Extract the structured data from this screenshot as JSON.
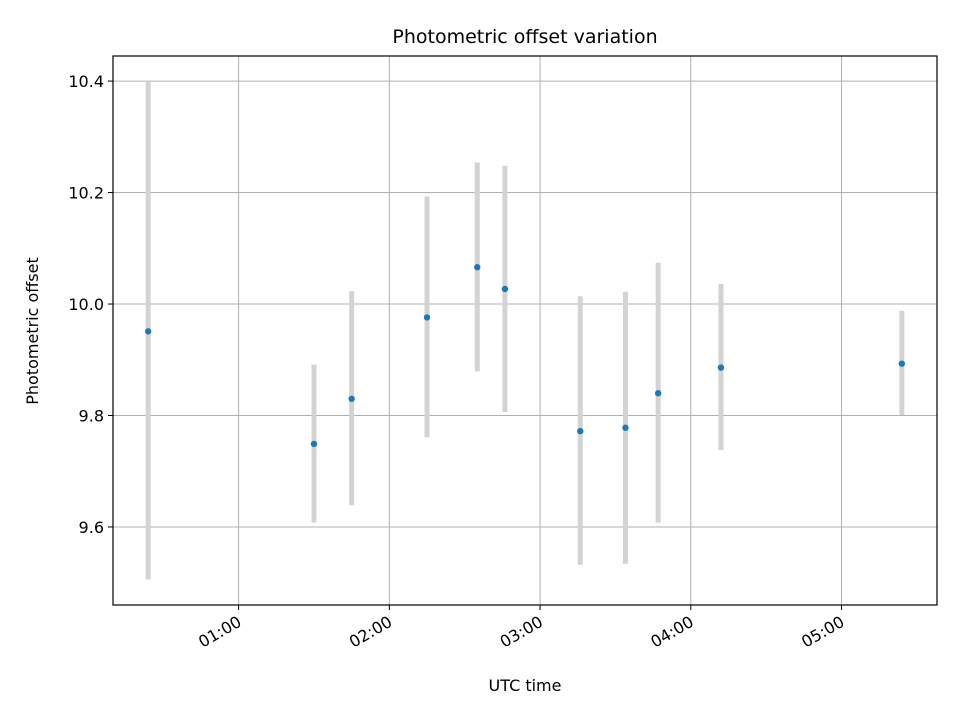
{
  "chart_data": {
    "type": "scatter",
    "title": "Photometric offset variation",
    "xlabel": "UTC time",
    "ylabel": "Photometric offset",
    "xlim": [
      "00:10",
      "05:38"
    ],
    "ylim": [
      9.46,
      10.445
    ],
    "x_ticks": [
      "01:00",
      "02:00",
      "03:00",
      "04:00",
      "05:00"
    ],
    "y_ticks": [
      "9.6",
      "9.8",
      "10.0",
      "10.2",
      "10.4"
    ],
    "grid": true,
    "marker_color": "#1f77b4",
    "errorbar_color": "#d3d3d3",
    "points": [
      {
        "x": "00:24",
        "y": 9.951,
        "ylow": 9.506,
        "yhigh": 10.4
      },
      {
        "x": "01:30",
        "y": 9.749,
        "ylow": 9.608,
        "yhigh": 9.891
      },
      {
        "x": "01:45",
        "y": 9.83,
        "ylow": 9.639,
        "yhigh": 10.023
      },
      {
        "x": "02:15",
        "y": 9.976,
        "ylow": 9.761,
        "yhigh": 10.193
      },
      {
        "x": "02:35",
        "y": 10.066,
        "ylow": 9.879,
        "yhigh": 10.254
      },
      {
        "x": "02:46",
        "y": 10.027,
        "ylow": 9.806,
        "yhigh": 10.248
      },
      {
        "x": "03:16",
        "y": 9.772,
        "ylow": 9.532,
        "yhigh": 10.014
      },
      {
        "x": "03:34",
        "y": 9.778,
        "ylow": 9.534,
        "yhigh": 10.022
      },
      {
        "x": "03:47",
        "y": 9.84,
        "ylow": 9.608,
        "yhigh": 10.074
      },
      {
        "x": "04:12",
        "y": 9.886,
        "ylow": 9.738,
        "yhigh": 10.036
      },
      {
        "x": "05:24",
        "y": 9.893,
        "ylow": 9.801,
        "yhigh": 9.988
      }
    ]
  }
}
